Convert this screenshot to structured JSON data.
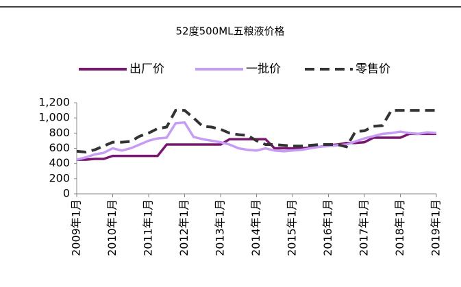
{
  "chart_data": {
    "type": "line",
    "title": "52度500ML五粮液价格",
    "categories": [
      "2009年1月",
      null,
      null,
      null,
      "2010年1月",
      null,
      null,
      null,
      "2011年1月",
      null,
      null,
      null,
      "2012年1月",
      null,
      null,
      null,
      "2013年1月",
      null,
      null,
      null,
      "2014年1月",
      null,
      null,
      null,
      "2015年1月",
      null,
      null,
      null,
      "2016年1月",
      null,
      null,
      null,
      "2017年1月",
      null,
      null,
      null,
      "2018年1月",
      null,
      null,
      null,
      "2019年1月"
    ],
    "series": [
      {
        "name": "出厂价",
        "color": "#7b1670",
        "dash": false,
        "values": [
          450,
          450,
          460,
          460,
          500,
          500,
          500,
          500,
          500,
          500,
          650,
          650,
          650,
          650,
          650,
          650,
          650,
          720,
          720,
          720,
          720,
          720,
          600,
          600,
          600,
          600,
          610,
          620,
          640,
          650,
          670,
          670,
          680,
          740,
          740,
          740,
          740,
          790,
          790,
          790,
          790
        ]
      },
      {
        "name": "一批价",
        "color": "#c69cf5",
        "dash": false,
        "values": [
          450,
          480,
          520,
          540,
          600,
          570,
          600,
          650,
          700,
          730,
          740,
          930,
          940,
          750,
          720,
          700,
          680,
          650,
          600,
          580,
          570,
          600,
          570,
          560,
          570,
          580,
          600,
          620,
          630,
          640,
          650,
          690,
          730,
          760,
          790,
          800,
          820,
          800,
          790,
          810,
          800
        ]
      },
      {
        "name": "零售价",
        "color": "#333333",
        "dash": true,
        "values": [
          560,
          550,
          580,
          630,
          680,
          680,
          690,
          760,
          800,
          860,
          880,
          1100,
          1100,
          1000,
          890,
          880,
          850,
          800,
          780,
          770,
          700,
          650,
          650,
          640,
          630,
          630,
          640,
          650,
          650,
          650,
          620,
          820,
          830,
          890,
          900,
          1100,
          1100,
          1100,
          1100,
          1100,
          1100
        ]
      }
    ],
    "ylim": [
      0,
      1200
    ],
    "yticks": [
      0,
      200,
      400,
      600,
      800,
      {
        "value": 1000,
        "label": "1,000"
      },
      {
        "value": 1200,
        "label": "1,200"
      }
    ],
    "grid": false
  }
}
